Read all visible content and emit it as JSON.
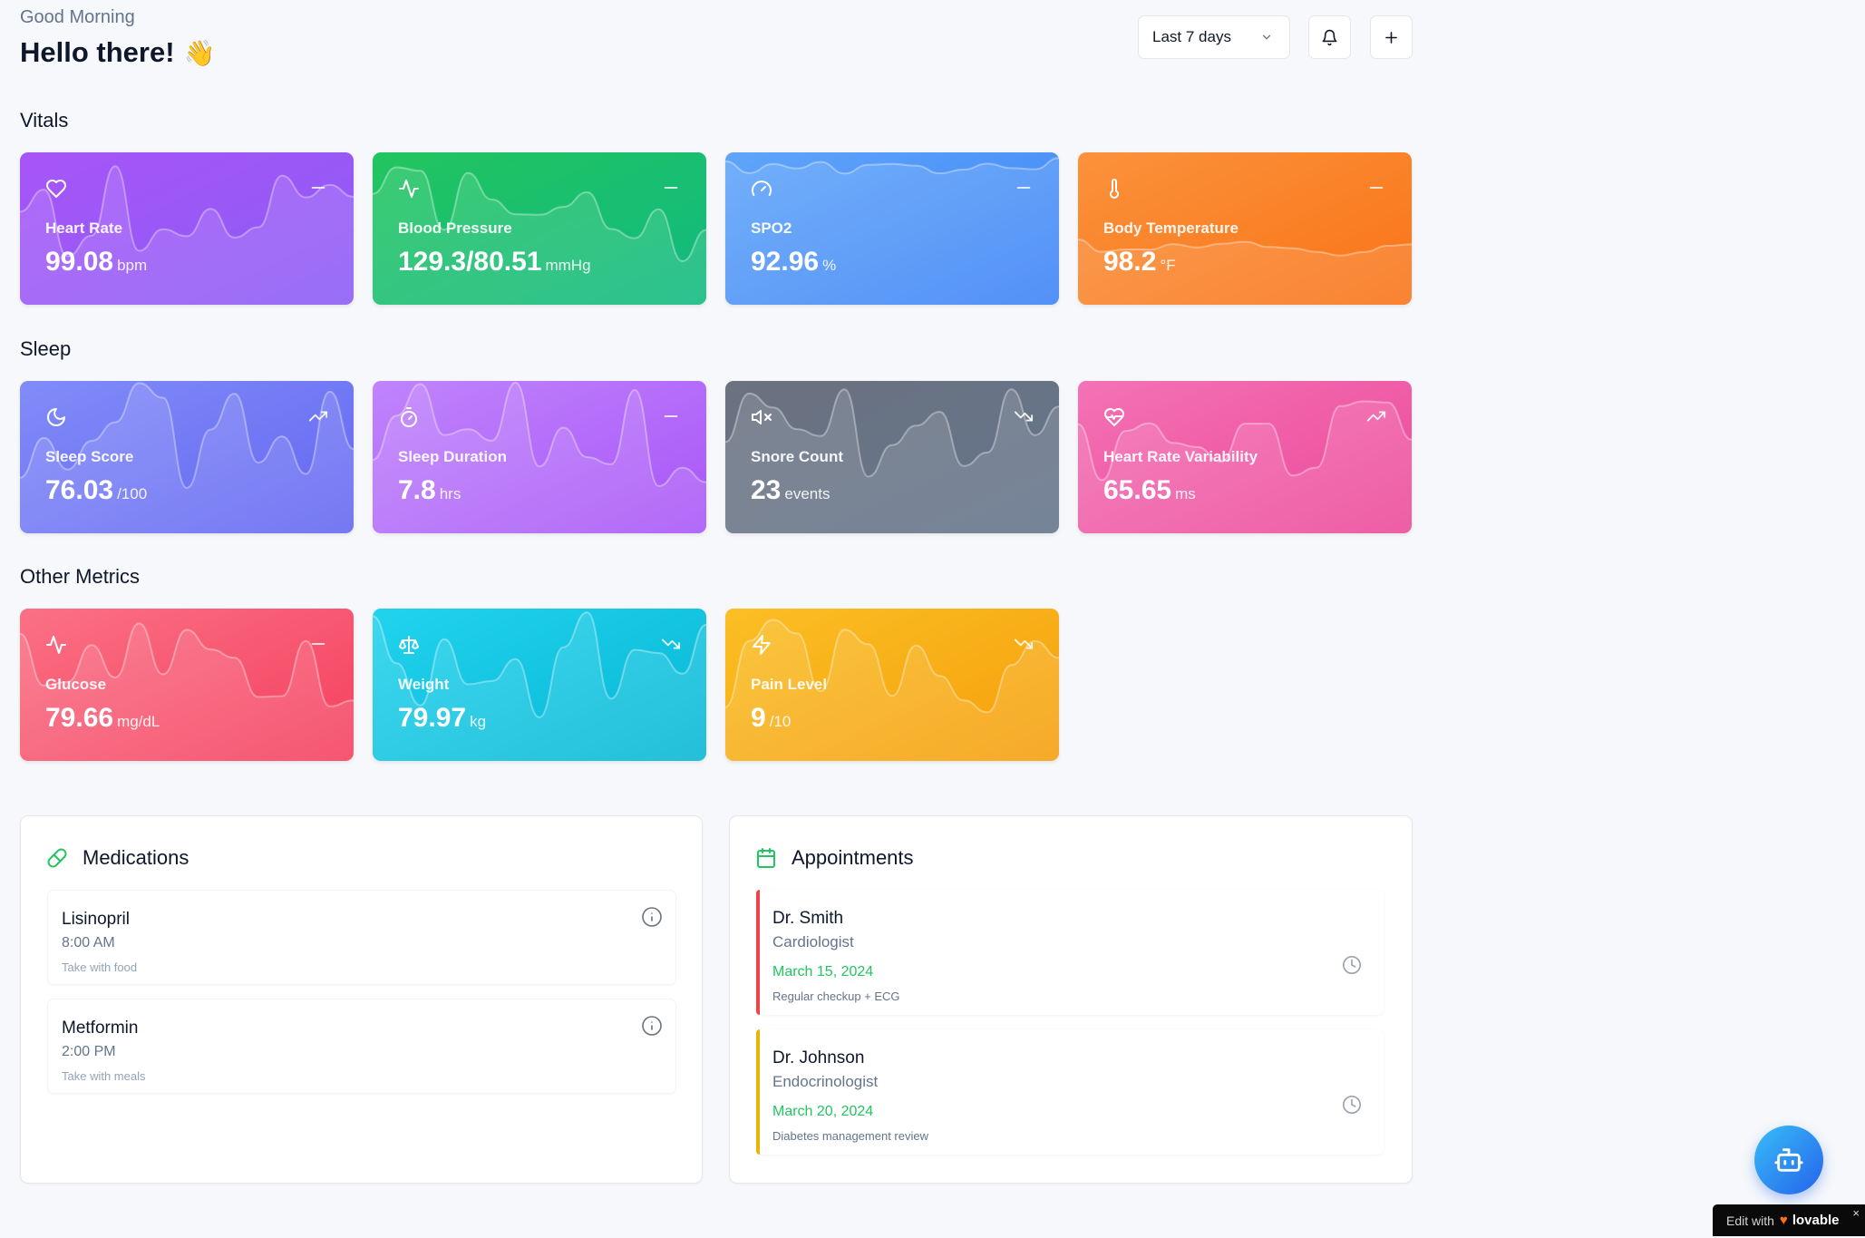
{
  "header": {
    "greeting": "Good Morning",
    "title": "Hello there!",
    "wave": "👋",
    "range_label": "Last 7 days"
  },
  "sections": {
    "vitals": "Vitals",
    "sleep": "Sleep",
    "other": "Other Metrics"
  },
  "cards": {
    "heart_rate": {
      "label": "Heart Rate",
      "value": "99.08",
      "unit": "bpm",
      "trend": "flat",
      "color_a": "#a855f7",
      "color_b": "#8b5cf6"
    },
    "blood_pressure": {
      "label": "Blood Pressure",
      "value": "129.3/80.51",
      "unit": "mmHg",
      "trend": "flat",
      "color_a": "#22c55e",
      "color_b": "#10b981"
    },
    "spo2": {
      "label": "SPO2",
      "value": "92.96",
      "unit": "%",
      "trend": "flat",
      "color_a": "#60a5fa",
      "color_b": "#3b82f6"
    },
    "body_temp": {
      "label": "Body Temperature",
      "value": "98.2",
      "unit": "°F",
      "trend": "flat",
      "color_a": "#fb923c",
      "color_b": "#f97316"
    },
    "sleep_score": {
      "label": "Sleep Score",
      "value": "76.03",
      "unit": "/100",
      "trend": "up",
      "color_a": "#818cf8",
      "color_b": "#6366f1"
    },
    "sleep_duration": {
      "label": "Sleep Duration",
      "value": "7.8",
      "unit": "hrs",
      "trend": "flat",
      "color_a": "#c084fc",
      "color_b": "#a855f7"
    },
    "snore_count": {
      "label": "Snore Count",
      "value": "23",
      "unit": "events",
      "trend": "down",
      "color_a": "#6b7280",
      "color_b": "#64748b"
    },
    "hrv": {
      "label": "Heart Rate Variability",
      "value": "65.65",
      "unit": "ms",
      "trend": "up",
      "color_a": "#f472b6",
      "color_b": "#ec4899"
    },
    "glucose": {
      "label": "Glucose",
      "value": "79.66",
      "unit": "mg/dL",
      "trend": "flat",
      "color_a": "#fb7185",
      "color_b": "#f43f5e"
    },
    "weight": {
      "label": "Weight",
      "value": "79.97",
      "unit": "kg",
      "trend": "down",
      "color_a": "#22d3ee",
      "color_b": "#06b6d4"
    },
    "pain_level": {
      "label": "Pain Level",
      "value": "9",
      "unit": "/10",
      "trend": "down",
      "color_a": "#fbbf24",
      "color_b": "#f59e0b"
    }
  },
  "medications": {
    "title": "Medications",
    "items": [
      {
        "name": "Lisinopril",
        "time": "8:00 AM",
        "note": "Take with food"
      },
      {
        "name": "Metformin",
        "time": "2:00 PM",
        "note": "Take with meals"
      }
    ]
  },
  "appointments": {
    "title": "Appointments",
    "items": [
      {
        "doctor": "Dr. Smith",
        "specialty": "Cardiologist",
        "date": "March 15, 2024",
        "description": "Regular checkup + ECG",
        "accent": "#ef4444"
      },
      {
        "doctor": "Dr. Johnson",
        "specialty": "Endocrinologist",
        "date": "March 20, 2024",
        "description": "Diabetes management review",
        "accent": "#eab308"
      }
    ]
  },
  "badge": {
    "edit_with": "Edit with",
    "brand": "lovable",
    "close": "×"
  }
}
